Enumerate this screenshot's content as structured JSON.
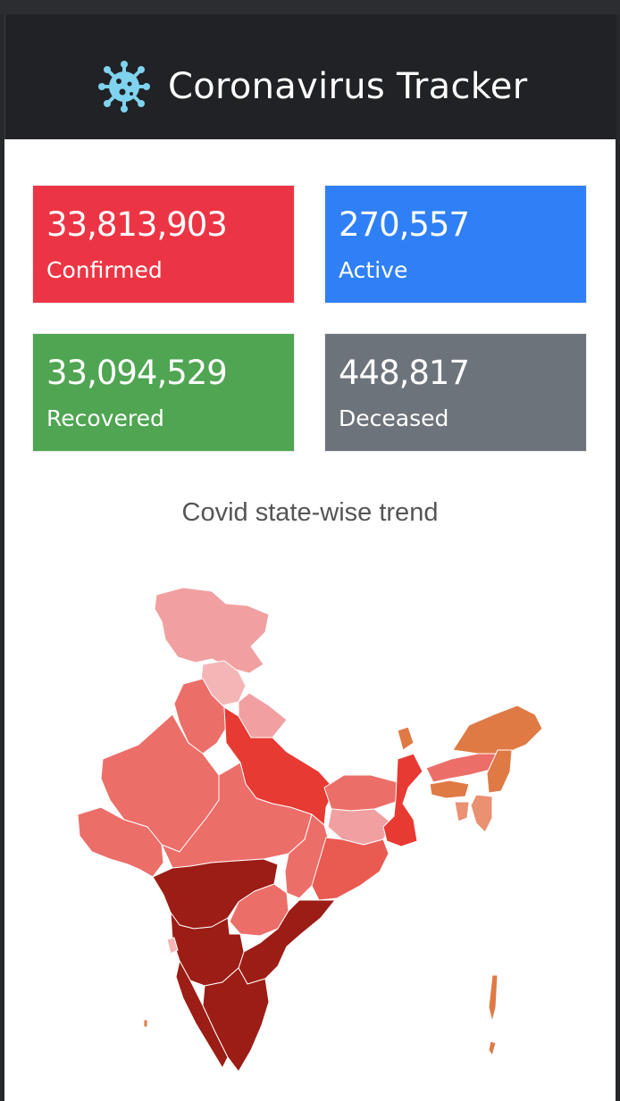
{
  "app": {
    "title": "Coronavirus Tracker",
    "icon": "virus-icon",
    "icon_color": "#7fd3ee"
  },
  "stats": [
    {
      "id": "confirmed",
      "value": "33,813,903",
      "label": "Confirmed",
      "color": "#ec3544"
    },
    {
      "id": "active",
      "value": "270,557",
      "label": "Active",
      "color": "#2f80f6"
    },
    {
      "id": "recovered",
      "value": "33,094,529",
      "label": "Recovered",
      "color": "#4fa551"
    },
    {
      "id": "deceased",
      "value": "448,817",
      "label": "Deceased",
      "color": "#6d737b"
    }
  ],
  "map": {
    "title": "Covid state-wise trend",
    "colors": {
      "lightest": "#f4b5b6",
      "light": "#f1a0a1",
      "medium": "#ec6e69",
      "strong": "#e95a50",
      "bright": "#e63a32",
      "dark": "#9c1d15",
      "orange": "#df7a45",
      "peach": "#e99170"
    }
  }
}
